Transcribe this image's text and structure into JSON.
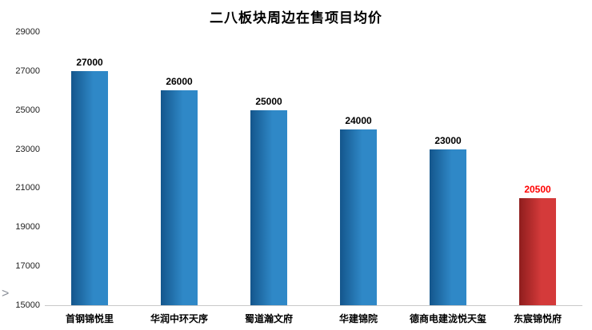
{
  "nav": {
    "next_arrow": ">"
  },
  "colors": {
    "blue_bar_dark": "#14568c",
    "blue_bar_light": "#2f88c7",
    "red_bar_dark": "#8f1d1d",
    "red_bar_light": "#d43a3a",
    "value_label_default": "#000000",
    "value_label_highlight": "#ff0000",
    "axis_line": "#c9c9c9"
  },
  "chart_data": {
    "type": "bar",
    "title": "二八板块周边在售项目均价",
    "categories": [
      "首钢锦悦里",
      "华润中环天序",
      "蜀道瀚文府",
      "华建锦院",
      "德商电建泷悦天玺",
      "东宸锦悦府"
    ],
    "values": [
      27000,
      26000,
      25000,
      24000,
      23000,
      20500
    ],
    "value_labels": [
      "27000",
      "26000",
      "25000",
      "24000",
      "23000",
      "20500"
    ],
    "bar_styles": [
      "blue",
      "blue",
      "blue",
      "blue",
      "blue",
      "red"
    ],
    "label_styles": [
      "default",
      "default",
      "default",
      "default",
      "default",
      "highlight"
    ],
    "xlabel": "",
    "ylabel": "",
    "ylim": [
      15000,
      29000
    ],
    "yticks": [
      15000,
      17000,
      19000,
      21000,
      23000,
      25000,
      27000,
      29000
    ],
    "grid": false,
    "legend": null
  }
}
